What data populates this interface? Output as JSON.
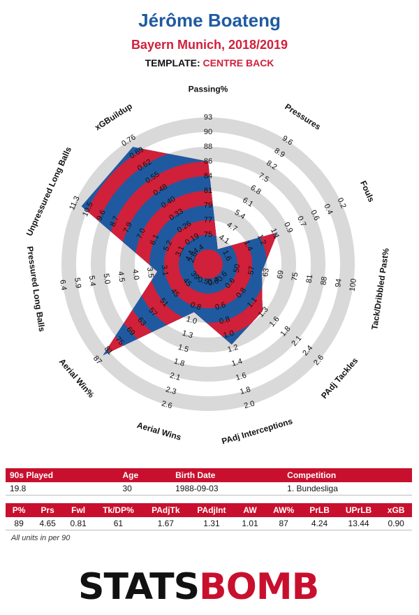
{
  "header": {
    "player": "Jérôme Boateng",
    "team_season": "Bayern Munich, 2018/2019",
    "template_label": "TEMPLATE:",
    "template_value": "CENTRE BACK"
  },
  "colors": {
    "blue": "#1f5aa0",
    "red": "#d0203a",
    "ring": "#d9d9d9",
    "header_red": "#c8102e"
  },
  "chart_data": {
    "type": "radar",
    "ring_count": 10,
    "axes": [
      {
        "label": "Passing%",
        "ticks": [
          "75",
          "77",
          "79",
          "81",
          "84",
          "86",
          "88",
          "90",
          "93"
        ],
        "value": 89,
        "display_value": "89"
      },
      {
        "label": "Pressures",
        "ticks": [
          "4.1",
          "4.7",
          "5.4",
          "6.1",
          "6.8",
          "7.5",
          "8.2",
          "8.9",
          "9.6"
        ],
        "value": 4.65,
        "display_value": "4.65"
      },
      {
        "label": "Fouls",
        "ticks": [
          "1.4",
          "1.2",
          "1.1",
          "0.9",
          "0.7",
          "0.6",
          "0.4",
          "0.2"
        ],
        "ticks_offset": 1,
        "value": 0.81,
        "display_value": "0.81"
      },
      {
        "label": "Tack/Dribbled Past%",
        "ticks": [
          "50",
          "57",
          "63",
          "69",
          "75",
          "81",
          "88",
          "94",
          "100"
        ],
        "value": 61,
        "display_value": "61"
      },
      {
        "label": "PAdj Tackles",
        "ticks": [
          "0.6",
          "0.8",
          "1.1",
          "1.3",
          "1.6",
          "1.8",
          "2.1",
          "2.4",
          "2.6"
        ],
        "value": 1.67,
        "display_value": "1.67"
      },
      {
        "label": "PAdj Interceptions",
        "ticks": [
          "0.6",
          "0.8",
          "1.0",
          "1.2",
          "1.4",
          "1.6",
          "1.8",
          "2.0"
        ],
        "ticks_offset": 1,
        "value": 1.31,
        "display_value": "1.31"
      },
      {
        "label": "Aerial Wins",
        "ticks": [
          "0.8",
          "1.0",
          "1.3",
          "1.5",
          "1.8",
          "2.1",
          "2.3",
          "2.6"
        ],
        "ticks_offset": 1,
        "value": 1.01,
        "display_value": "1.01"
      },
      {
        "label": "Aerial Win%",
        "ticks": [
          "45",
          "51",
          "57",
          "63",
          "69",
          "75",
          "81",
          "87"
        ],
        "ticks_offset": 1,
        "value": 87,
        "display_value": "87"
      },
      {
        "label": "Pressured Long Balls",
        "ticks": [
          "3.1",
          "3.5",
          "4.0",
          "4.5",
          "5.0",
          "5.4",
          "5.9",
          "6.4"
        ],
        "ticks_offset": 1,
        "value": 4.24,
        "display_value": "4.24"
      },
      {
        "label": "Unpressured Long Balls",
        "ticks": [
          "5.2",
          "6.1",
          "7.0",
          "7.9",
          "8.7",
          "9.6",
          "10.5",
          "11.3"
        ],
        "ticks_offset": 1,
        "value": 13.44,
        "display_value": "13.44"
      },
      {
        "label": "xGBuildup",
        "ticks": [
          "0.19",
          "0.26",
          "0.33",
          "0.40",
          "0.48",
          "0.55",
          "0.62",
          "0.69",
          "0.76"
        ],
        "value": 0.9,
        "display_value": "0.90"
      }
    ],
    "player_radii_rings": [
      7.0,
      1.2,
      5.2,
      3.7,
      4.9,
      5.7,
      3.4,
      9.5,
      3.5,
      9.5,
      9.5
    ],
    "extra_tick_labels": [
      {
        "text": "4.4",
        "axis": 10,
        "ring": 1.2
      },
      {
        "text": "4.4",
        "axis": 9,
        "ring": 1.35
      },
      {
        "text": "3.1",
        "axis": 9,
        "ring": 2.1
      },
      {
        "text": "2.6",
        "axis": 9,
        "ring": 1.1
      },
      {
        "text": "39",
        "axis": 7,
        "ring": 1.2
      },
      {
        "text": "45",
        "axis": 7,
        "ring": 1.9
      },
      {
        "text": "0.5",
        "axis": 6,
        "ring": 1.2
      },
      {
        "text": "0.4",
        "axis": 5,
        "ring": 1.2
      },
      {
        "text": "0.6",
        "axis": 5,
        "ring": 1.3
      },
      {
        "text": "0.6",
        "axis": 4,
        "ring": 1.3
      },
      {
        "text": "1.6",
        "axis": 2,
        "ring": 1.4
      }
    ]
  },
  "info_table": {
    "headers": [
      "90s Played",
      "Age",
      "Birth Date",
      "Competition"
    ],
    "values": [
      "19.8",
      "30",
      "1988-09-03",
      "1. Bundesliga"
    ]
  },
  "stats_table": {
    "headers": [
      "P%",
      "Prs",
      "Fwl",
      "Tk/DP%",
      "PAdjTk",
      "PAdjInt",
      "AW",
      "AW%",
      "PrLB",
      "UPrLB",
      "xGB"
    ],
    "values": [
      "89",
      "4.65",
      "0.81",
      "61",
      "1.67",
      "1.31",
      "1.01",
      "87",
      "4.24",
      "13.44",
      "0.90"
    ]
  },
  "units_note": "All units in per 90",
  "logo": {
    "part1": "STATS",
    "part2": "BOMB"
  }
}
